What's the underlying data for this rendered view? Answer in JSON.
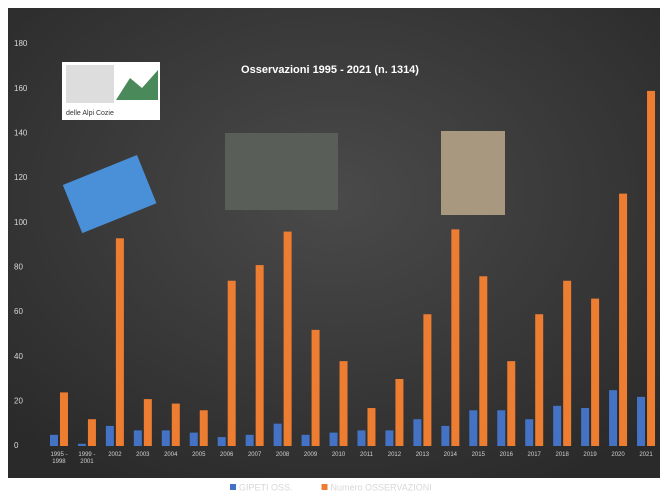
{
  "chart_data": {
    "type": "bar",
    "title": "Osservazioni  1995 - 2021 (n. 1314)",
    "annotations": [
      "delle Alpi Cozie"
    ],
    "categories": [
      "1995 - 1998",
      "1999 - 2001",
      "2002",
      "2003",
      "2004",
      "2005",
      "2006",
      "2007",
      "2008",
      "2009",
      "2010",
      "2011",
      "2012",
      "2013",
      "2014",
      "2015",
      "2016",
      "2017",
      "2018",
      "2019",
      "2020",
      "2021"
    ],
    "series": [
      {
        "name": "GIPETI OSS.",
        "color": "#4472c4",
        "values": [
          5,
          1,
          9,
          7,
          7,
          6,
          4,
          5,
          10,
          5,
          6,
          7,
          7,
          12,
          9,
          16,
          16,
          12,
          18,
          17,
          25,
          22
        ]
      },
      {
        "name": "Numero  OSSERVAZIONI",
        "color": "#ed7d31",
        "values": [
          24,
          12,
          93,
          21,
          19,
          16,
          74,
          81,
          96,
          52,
          38,
          17,
          30,
          59,
          97,
          76,
          38,
          59,
          74,
          66,
          113,
          159
        ]
      }
    ],
    "ylim": [
      0,
      180
    ],
    "yticks": [
      0,
      20,
      40,
      60,
      80,
      100,
      120,
      140,
      160,
      180
    ],
    "grid": false,
    "legend": "bottom"
  }
}
